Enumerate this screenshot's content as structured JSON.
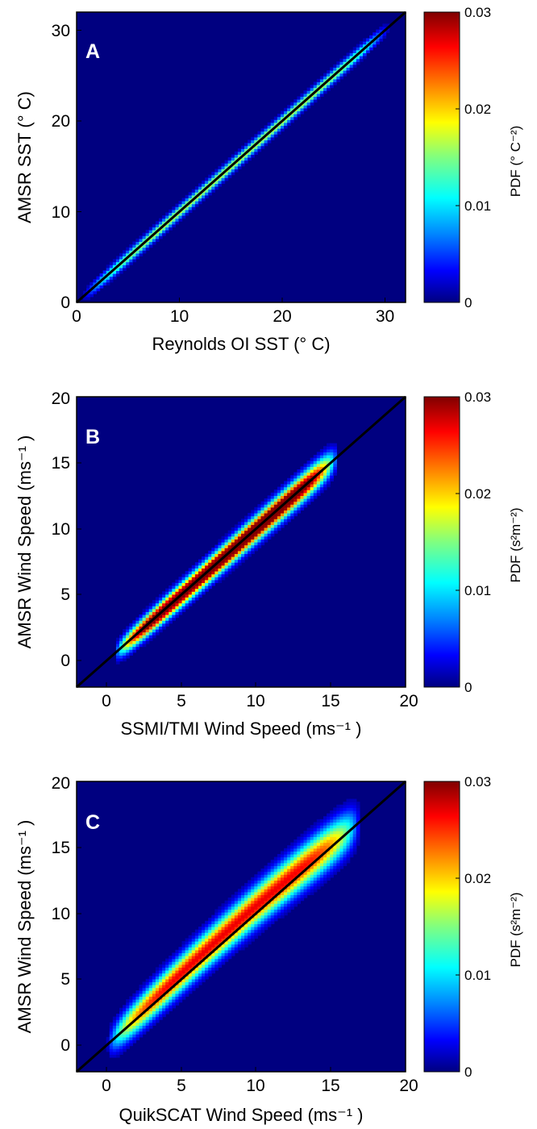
{
  "colors": {
    "background": "#000080",
    "fit_line": "#000000",
    "panel_label": "#ffffff"
  },
  "chart_data": [
    {
      "type": "heatmap",
      "panel_label": "A",
      "xlabel": "Reynolds OI SST (° C)",
      "ylabel": "AMSR SST (° C)",
      "xlim": [
        0,
        32
      ],
      "ylim": [
        0,
        32
      ],
      "xticks": [
        0,
        10,
        20,
        30
      ],
      "yticks": [
        0,
        10,
        20,
        30
      ],
      "colorbar": {
        "label": "PDF (° C⁻²)",
        "range": [
          0,
          0.03
        ],
        "ticks": [
          0,
          0.01,
          0.02,
          0.03
        ],
        "tick_labels": [
          "0",
          "0.01",
          "0.02",
          "0.03"
        ]
      },
      "reference_line": {
        "from": [
          0,
          0
        ],
        "to": [
          32,
          32
        ]
      },
      "distribution": {
        "x_range": [
          0.5,
          30.5
        ],
        "spread": 0.45,
        "peak_density": 0.018,
        "notes": "narrow ridge along the 1:1 line, densest near 27–30 °C"
      }
    },
    {
      "type": "heatmap",
      "panel_label": "B",
      "xlabel": "SSMI/TMI Wind Speed (ms⁻¹ )",
      "ylabel": "AMSR Wind Speed (ms⁻¹ )",
      "xlim": [
        -2,
        20
      ],
      "ylim": [
        -2,
        20
      ],
      "xticks": [
        0,
        5,
        10,
        15,
        20
      ],
      "yticks": [
        0,
        5,
        10,
        15,
        20
      ],
      "colorbar": {
        "label": "PDF (s²m⁻²)",
        "range": [
          0,
          0.03
        ],
        "ticks": [
          0,
          0.01,
          0.02,
          0.03
        ],
        "tick_labels": [
          "0",
          "0.01",
          "0.02",
          "0.03"
        ]
      },
      "reference_line": {
        "from": [
          -2,
          -2
        ],
        "to": [
          20,
          20
        ]
      },
      "distribution": {
        "x_range": [
          0.5,
          15.5
        ],
        "spread": 0.7,
        "peak_density": 0.03,
        "notes": "dense elongated cloud centred on 5–10 m/s"
      }
    },
    {
      "type": "heatmap",
      "panel_label": "C",
      "xlabel": "QuikSCAT Wind Speed (ms⁻¹ )",
      "ylabel": "AMSR Wind Speed (ms⁻¹ )",
      "xlim": [
        -2,
        20
      ],
      "ylim": [
        -2,
        20
      ],
      "xticks": [
        0,
        5,
        10,
        15,
        20
      ],
      "yticks": [
        0,
        5,
        10,
        15,
        20
      ],
      "colorbar": {
        "label": "PDF (s²m⁻²)",
        "range": [
          0,
          0.03
        ],
        "ticks": [
          0,
          0.01,
          0.02,
          0.03
        ],
        "tick_labels": [
          "0",
          "0.01",
          "0.02",
          "0.03"
        ]
      },
      "reference_line": {
        "from": [
          -2,
          -2
        ],
        "to": [
          20,
          20
        ]
      },
      "distribution": {
        "x_range": [
          0,
          17
        ],
        "spread": 1.1,
        "peak_density": 0.027,
        "notes": "broader cloud, AMSR slightly above QuikSCAT at 2–12 m/s"
      }
    }
  ]
}
